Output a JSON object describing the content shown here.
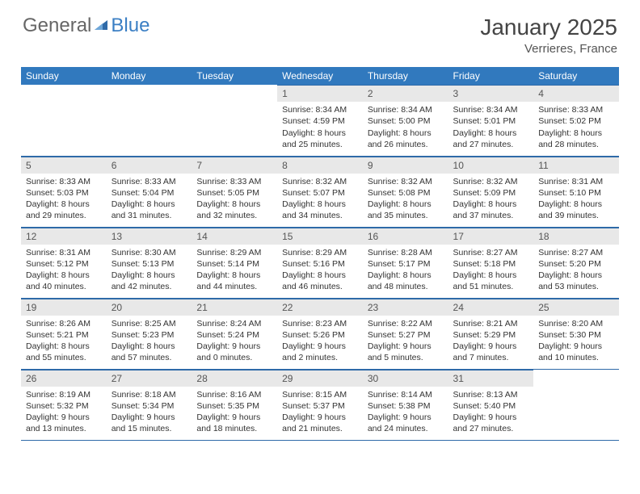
{
  "logo": {
    "text_general": "General",
    "text_blue": "Blue"
  },
  "header": {
    "title": "January 2025",
    "location": "Verrieres, France"
  },
  "colors": {
    "header_bg": "#3179be",
    "header_text": "#ffffff",
    "daynum_bg": "#e8e8e8",
    "border": "#2e6aa8",
    "body_text": "#333333",
    "title_text": "#444444"
  },
  "weekdays": [
    "Sunday",
    "Monday",
    "Tuesday",
    "Wednesday",
    "Thursday",
    "Friday",
    "Saturday"
  ],
  "weeks": [
    [
      null,
      null,
      null,
      {
        "n": "1",
        "sr": "Sunrise: 8:34 AM",
        "ss": "Sunset: 4:59 PM",
        "d1": "Daylight: 8 hours",
        "d2": "and 25 minutes."
      },
      {
        "n": "2",
        "sr": "Sunrise: 8:34 AM",
        "ss": "Sunset: 5:00 PM",
        "d1": "Daylight: 8 hours",
        "d2": "and 26 minutes."
      },
      {
        "n": "3",
        "sr": "Sunrise: 8:34 AM",
        "ss": "Sunset: 5:01 PM",
        "d1": "Daylight: 8 hours",
        "d2": "and 27 minutes."
      },
      {
        "n": "4",
        "sr": "Sunrise: 8:33 AM",
        "ss": "Sunset: 5:02 PM",
        "d1": "Daylight: 8 hours",
        "d2": "and 28 minutes."
      }
    ],
    [
      {
        "n": "5",
        "sr": "Sunrise: 8:33 AM",
        "ss": "Sunset: 5:03 PM",
        "d1": "Daylight: 8 hours",
        "d2": "and 29 minutes."
      },
      {
        "n": "6",
        "sr": "Sunrise: 8:33 AM",
        "ss": "Sunset: 5:04 PM",
        "d1": "Daylight: 8 hours",
        "d2": "and 31 minutes."
      },
      {
        "n": "7",
        "sr": "Sunrise: 8:33 AM",
        "ss": "Sunset: 5:05 PM",
        "d1": "Daylight: 8 hours",
        "d2": "and 32 minutes."
      },
      {
        "n": "8",
        "sr": "Sunrise: 8:32 AM",
        "ss": "Sunset: 5:07 PM",
        "d1": "Daylight: 8 hours",
        "d2": "and 34 minutes."
      },
      {
        "n": "9",
        "sr": "Sunrise: 8:32 AM",
        "ss": "Sunset: 5:08 PM",
        "d1": "Daylight: 8 hours",
        "d2": "and 35 minutes."
      },
      {
        "n": "10",
        "sr": "Sunrise: 8:32 AM",
        "ss": "Sunset: 5:09 PM",
        "d1": "Daylight: 8 hours",
        "d2": "and 37 minutes."
      },
      {
        "n": "11",
        "sr": "Sunrise: 8:31 AM",
        "ss": "Sunset: 5:10 PM",
        "d1": "Daylight: 8 hours",
        "d2": "and 39 minutes."
      }
    ],
    [
      {
        "n": "12",
        "sr": "Sunrise: 8:31 AM",
        "ss": "Sunset: 5:12 PM",
        "d1": "Daylight: 8 hours",
        "d2": "and 40 minutes."
      },
      {
        "n": "13",
        "sr": "Sunrise: 8:30 AM",
        "ss": "Sunset: 5:13 PM",
        "d1": "Daylight: 8 hours",
        "d2": "and 42 minutes."
      },
      {
        "n": "14",
        "sr": "Sunrise: 8:29 AM",
        "ss": "Sunset: 5:14 PM",
        "d1": "Daylight: 8 hours",
        "d2": "and 44 minutes."
      },
      {
        "n": "15",
        "sr": "Sunrise: 8:29 AM",
        "ss": "Sunset: 5:16 PM",
        "d1": "Daylight: 8 hours",
        "d2": "and 46 minutes."
      },
      {
        "n": "16",
        "sr": "Sunrise: 8:28 AM",
        "ss": "Sunset: 5:17 PM",
        "d1": "Daylight: 8 hours",
        "d2": "and 48 minutes."
      },
      {
        "n": "17",
        "sr": "Sunrise: 8:27 AM",
        "ss": "Sunset: 5:18 PM",
        "d1": "Daylight: 8 hours",
        "d2": "and 51 minutes."
      },
      {
        "n": "18",
        "sr": "Sunrise: 8:27 AM",
        "ss": "Sunset: 5:20 PM",
        "d1": "Daylight: 8 hours",
        "d2": "and 53 minutes."
      }
    ],
    [
      {
        "n": "19",
        "sr": "Sunrise: 8:26 AM",
        "ss": "Sunset: 5:21 PM",
        "d1": "Daylight: 8 hours",
        "d2": "and 55 minutes."
      },
      {
        "n": "20",
        "sr": "Sunrise: 8:25 AM",
        "ss": "Sunset: 5:23 PM",
        "d1": "Daylight: 8 hours",
        "d2": "and 57 minutes."
      },
      {
        "n": "21",
        "sr": "Sunrise: 8:24 AM",
        "ss": "Sunset: 5:24 PM",
        "d1": "Daylight: 9 hours",
        "d2": "and 0 minutes."
      },
      {
        "n": "22",
        "sr": "Sunrise: 8:23 AM",
        "ss": "Sunset: 5:26 PM",
        "d1": "Daylight: 9 hours",
        "d2": "and 2 minutes."
      },
      {
        "n": "23",
        "sr": "Sunrise: 8:22 AM",
        "ss": "Sunset: 5:27 PM",
        "d1": "Daylight: 9 hours",
        "d2": "and 5 minutes."
      },
      {
        "n": "24",
        "sr": "Sunrise: 8:21 AM",
        "ss": "Sunset: 5:29 PM",
        "d1": "Daylight: 9 hours",
        "d2": "and 7 minutes."
      },
      {
        "n": "25",
        "sr": "Sunrise: 8:20 AM",
        "ss": "Sunset: 5:30 PM",
        "d1": "Daylight: 9 hours",
        "d2": "and 10 minutes."
      }
    ],
    [
      {
        "n": "26",
        "sr": "Sunrise: 8:19 AM",
        "ss": "Sunset: 5:32 PM",
        "d1": "Daylight: 9 hours",
        "d2": "and 13 minutes."
      },
      {
        "n": "27",
        "sr": "Sunrise: 8:18 AM",
        "ss": "Sunset: 5:34 PM",
        "d1": "Daylight: 9 hours",
        "d2": "and 15 minutes."
      },
      {
        "n": "28",
        "sr": "Sunrise: 8:16 AM",
        "ss": "Sunset: 5:35 PM",
        "d1": "Daylight: 9 hours",
        "d2": "and 18 minutes."
      },
      {
        "n": "29",
        "sr": "Sunrise: 8:15 AM",
        "ss": "Sunset: 5:37 PM",
        "d1": "Daylight: 9 hours",
        "d2": "and 21 minutes."
      },
      {
        "n": "30",
        "sr": "Sunrise: 8:14 AM",
        "ss": "Sunset: 5:38 PM",
        "d1": "Daylight: 9 hours",
        "d2": "and 24 minutes."
      },
      {
        "n": "31",
        "sr": "Sunrise: 8:13 AM",
        "ss": "Sunset: 5:40 PM",
        "d1": "Daylight: 9 hours",
        "d2": "and 27 minutes."
      },
      null
    ]
  ]
}
